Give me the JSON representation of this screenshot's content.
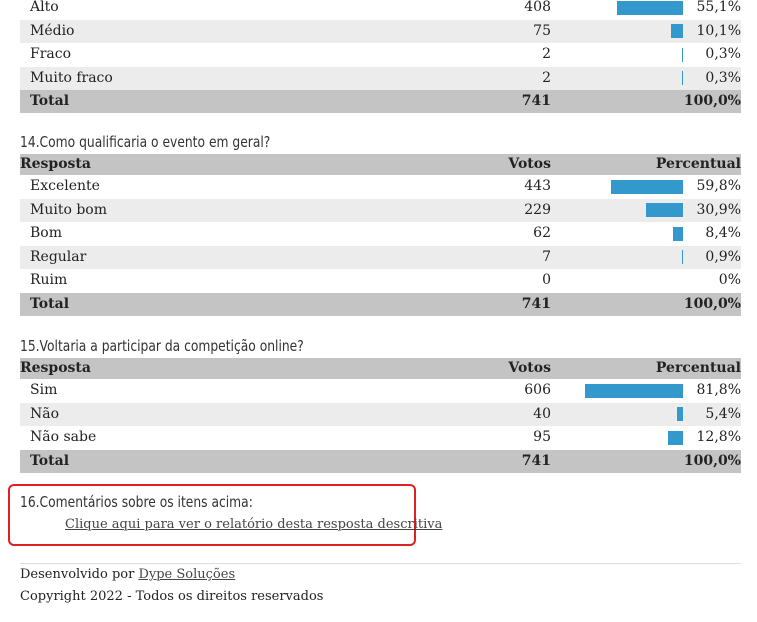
{
  "colors": {
    "bar": "#3399cc",
    "header_bg": "#c4c4c4",
    "alt_row": "#ececec",
    "highlight_border": "#e02020"
  },
  "q13": {
    "rows": [
      {
        "label": "Alto",
        "votes": "408",
        "pct": "55,1%",
        "frac": 0.551
      },
      {
        "label": "Médio",
        "votes": "75",
        "pct": "10,1%",
        "frac": 0.101
      },
      {
        "label": "Fraco",
        "votes": "2",
        "pct": "0,3%",
        "frac": 0.003
      },
      {
        "label": "Muito fraco",
        "votes": "2",
        "pct": "0,3%",
        "frac": 0.003
      }
    ],
    "total": {
      "label": "Total",
      "votes": "741",
      "pct": "100,0%"
    }
  },
  "q14": {
    "title": "14.Como qualificaria o evento em geral?",
    "headers": {
      "answer": "Resposta",
      "votes": "Votos",
      "pct": "Percentual"
    },
    "rows": [
      {
        "label": "Excelente",
        "votes": "443",
        "pct": "59,8%",
        "frac": 0.598
      },
      {
        "label": "Muito bom",
        "votes": "229",
        "pct": "30,9%",
        "frac": 0.309
      },
      {
        "label": "Bom",
        "votes": "62",
        "pct": "8,4%",
        "frac": 0.084
      },
      {
        "label": "Regular",
        "votes": "7",
        "pct": "0,9%",
        "frac": 0.009
      },
      {
        "label": "Ruim",
        "votes": "0",
        "pct": "0%",
        "frac": 0
      }
    ],
    "total": {
      "label": "Total",
      "votes": "741",
      "pct": "100,0%"
    }
  },
  "q15": {
    "title": "15.Voltaria a participar da competição online?",
    "headers": {
      "answer": "Resposta",
      "votes": "Votos",
      "pct": "Percentual"
    },
    "rows": [
      {
        "label": "Sim",
        "votes": "606",
        "pct": "81,8%",
        "frac": 0.818
      },
      {
        "label": "Não",
        "votes": "40",
        "pct": "5,4%",
        "frac": 0.054
      },
      {
        "label": "Não sabe",
        "votes": "95",
        "pct": "12,8%",
        "frac": 0.128
      }
    ],
    "total": {
      "label": "Total",
      "votes": "741",
      "pct": "100,0%"
    }
  },
  "q16": {
    "title": "16.Comentários sobre os itens acima:",
    "link": "Clique aqui para ver o relatório desta resposta descritiva"
  },
  "footer": {
    "developed_by": "Desenvolvido por",
    "company": "Dype Soluções",
    "copyright": "Copyright 2022 - Todos os direitos reservados"
  }
}
